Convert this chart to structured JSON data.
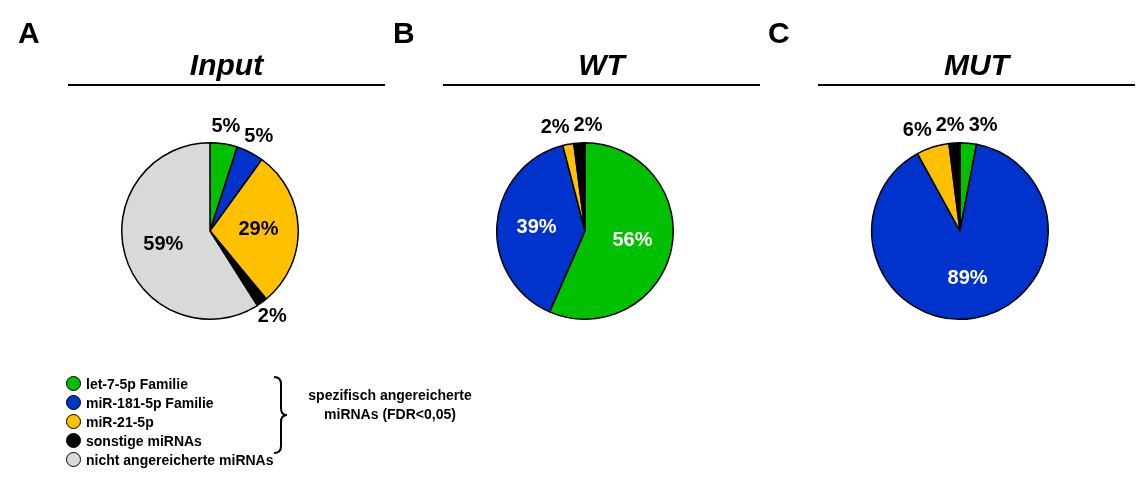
{
  "chart_data": [
    {
      "type": "pie",
      "title": "Input",
      "categories": [
        "let-7-5p Familie",
        "miR-181-5p Familie",
        "miR-21-5p",
        "sonstige miRNAs",
        "nicht angereicherte miRNAs"
      ],
      "values": [
        5,
        5,
        29,
        2,
        59
      ],
      "colors": [
        "#00c000",
        "#0033cc",
        "#ffc000",
        "#000000",
        "#d9d9d9"
      ],
      "value_labels": [
        "5%",
        "5%",
        "29%",
        "2%",
        "59%"
      ],
      "legend": "bottom left",
      "annotations": [
        "A",
        "spezifisch angereicherte miRNAs (FDR<0,05)"
      ]
    },
    {
      "type": "pie",
      "title": "WT",
      "values": [
        56,
        39,
        2,
        2
      ],
      "colors": [
        "#00c000",
        "#0033cc",
        "#ffc000",
        "#000000"
      ],
      "value_labels": [
        "56%",
        "39%",
        "2%",
        "2%"
      ],
      "annotations": [
        "B"
      ]
    },
    {
      "type": "pie",
      "title": "MUT",
      "values": [
        3,
        89,
        6,
        2
      ],
      "colors": [
        "#00c000",
        "#0033cc",
        "#ffc000",
        "#000000"
      ],
      "value_labels": [
        "3%",
        "89%",
        "6%",
        "2%"
      ],
      "annotations": [
        "C"
      ]
    }
  ]
}
